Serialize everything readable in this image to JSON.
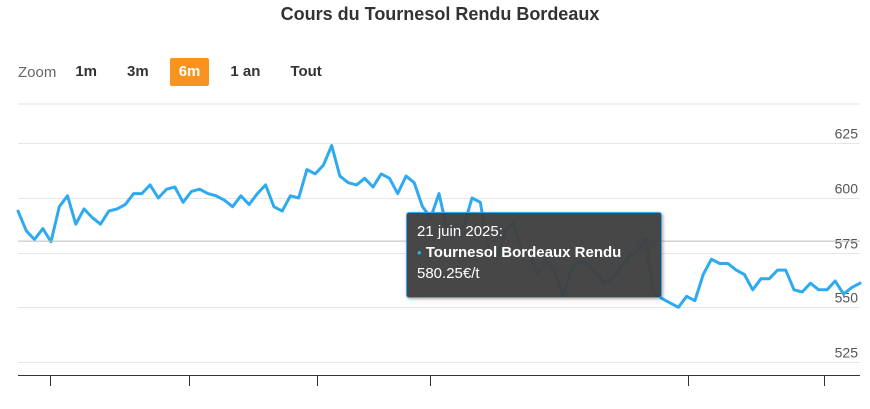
{
  "chart_data": {
    "type": "line",
    "title": "Cours du Tournesol Rendu Bordeaux",
    "series": [
      {
        "name": "Tournesol Bordeaux Rendu",
        "values": [
          594,
          585,
          581,
          586,
          580,
          596,
          601,
          588,
          595,
          591,
          588,
          594,
          595,
          597,
          602,
          602,
          606,
          600,
          604,
          605,
          598,
          603,
          604,
          602,
          601,
          599,
          596,
          601,
          597,
          602,
          606,
          596,
          594,
          601,
          600,
          613,
          611,
          615,
          624,
          610,
          607,
          606,
          609,
          605,
          611,
          609,
          602,
          610,
          607,
          596,
          591,
          602,
          585,
          584,
          587,
          600,
          598,
          576,
          572,
          585,
          589,
          576,
          574,
          565,
          571,
          567,
          555,
          567,
          571,
          570,
          566,
          561,
          563,
          568,
          573,
          576,
          580.25,
          557,
          554,
          552,
          550,
          555,
          553,
          565,
          572,
          570,
          570,
          567,
          565,
          558,
          563,
          563,
          567,
          567,
          558,
          557,
          561,
          558,
          558,
          562,
          556,
          559,
          561
        ],
        "color": "#2eaaf0"
      }
    ],
    "y_ticks": [
      525,
      550,
      575,
      600,
      625
    ],
    "ylim": [
      519,
      643
    ],
    "grid": true,
    "legend": "none"
  },
  "zoom": {
    "label": "Zoom",
    "buttons": [
      "1m",
      "3m",
      "6m",
      "1 an",
      "Tout"
    ],
    "active_index": 2,
    "active_color": "#f7931e"
  },
  "tooltip": {
    "date": "21 juin 2025:",
    "series_name": "Tournesol Bordeaux Rendu",
    "value": "580.25€/t",
    "point_index": 76,
    "bullet": "•"
  }
}
